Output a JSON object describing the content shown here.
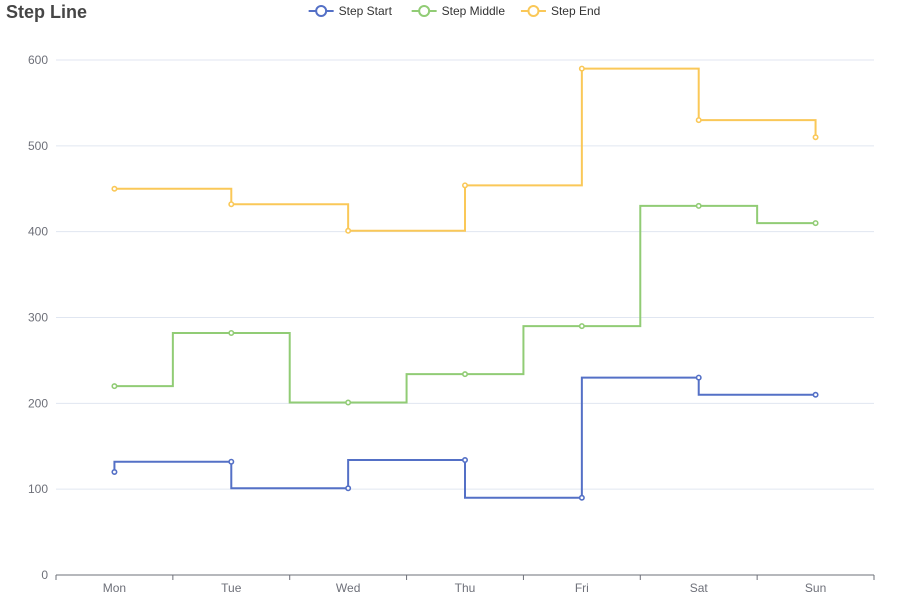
{
  "chart_data": {
    "type": "line",
    "step": true,
    "title": "Step Line",
    "categories": [
      "Mon",
      "Tue",
      "Wed",
      "Thu",
      "Fri",
      "Sat",
      "Sun"
    ],
    "ylim": [
      0,
      600
    ],
    "yticks": [
      0,
      100,
      200,
      300,
      400,
      500,
      600
    ],
    "grid": true,
    "legend_position": "top-center",
    "series": [
      {
        "name": "Step Start",
        "step": "start",
        "color": "#5470c6",
        "values": [
          120,
          132,
          101,
          134,
          90,
          230,
          210
        ]
      },
      {
        "name": "Step Middle",
        "step": "middle",
        "color": "#91cc75",
        "values": [
          220,
          282,
          201,
          234,
          290,
          430,
          410
        ]
      },
      {
        "name": "Step End",
        "step": "end",
        "color": "#fac858",
        "values": [
          450,
          432,
          401,
          454,
          590,
          530,
          510
        ]
      }
    ]
  }
}
